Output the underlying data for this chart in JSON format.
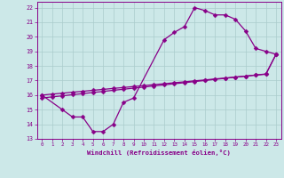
{
  "line1_x": [
    0,
    2,
    3,
    4,
    5,
    6,
    7,
    8,
    9,
    12,
    13,
    14,
    15,
    16,
    17,
    18,
    19,
    20,
    21,
    22,
    23
  ],
  "line1_y": [
    16,
    15,
    14.5,
    14.5,
    13.5,
    13.5,
    14.0,
    15.5,
    15.8,
    19.8,
    20.3,
    20.7,
    22.0,
    21.8,
    21.5,
    21.5,
    21.2,
    20.4,
    19.2,
    19.0,
    18.8
  ],
  "line2_x": [
    0,
    1,
    2,
    3,
    4,
    5,
    6,
    7,
    8,
    9,
    10,
    11,
    12,
    13,
    14,
    15,
    16,
    17,
    18,
    19,
    20,
    21,
    22,
    23
  ],
  "line2_y": [
    16.0,
    16.07,
    16.13,
    16.2,
    16.26,
    16.33,
    16.39,
    16.46,
    16.52,
    16.59,
    16.65,
    16.72,
    16.78,
    16.85,
    16.91,
    16.98,
    17.04,
    17.11,
    17.17,
    17.24,
    17.3,
    17.37,
    17.43,
    18.8
  ],
  "line3_x": [
    0,
    1,
    2,
    3,
    4,
    5,
    6,
    7,
    8,
    9,
    10,
    11,
    12,
    13,
    14,
    15,
    16,
    17,
    18,
    19,
    20,
    21,
    22,
    23
  ],
  "line3_y": [
    15.8,
    15.88,
    15.95,
    16.03,
    16.1,
    16.18,
    16.25,
    16.33,
    16.4,
    16.48,
    16.55,
    16.63,
    16.7,
    16.78,
    16.85,
    16.93,
    17.0,
    17.08,
    17.15,
    17.23,
    17.3,
    17.38,
    17.45,
    18.8
  ],
  "color": "#880088",
  "bg_color": "#cce8e8",
  "grid_color": "#aacccc",
  "xlabel": "Windchill (Refroidissement éolien,°C)",
  "xlim": [
    -0.5,
    23.5
  ],
  "ylim": [
    13,
    22.4
  ],
  "xticks": [
    0,
    1,
    2,
    3,
    4,
    5,
    6,
    7,
    8,
    9,
    10,
    11,
    12,
    13,
    14,
    15,
    16,
    17,
    18,
    19,
    20,
    21,
    22,
    23
  ],
  "yticks": [
    13,
    14,
    15,
    16,
    17,
    18,
    19,
    20,
    21,
    22
  ],
  "marker": "D",
  "markersize": 2.5,
  "linewidth": 0.9
}
